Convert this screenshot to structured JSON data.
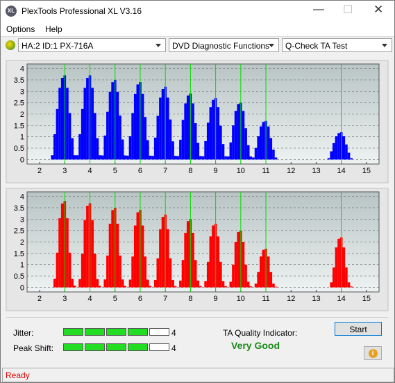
{
  "window_title": "PlexTools Professional XL V3.16",
  "menu": [
    "Options",
    "Help"
  ],
  "dropdowns": [
    "HA:2 ID:1  PX-716A",
    "DVD Diagnostic Functions",
    "Q-Check TA Test"
  ],
  "chart_data": [
    {
      "type": "bar",
      "color": "#0000ff",
      "marker_color": "#00dd00",
      "markers": [
        3,
        4,
        5,
        6,
        7,
        8,
        9,
        10,
        11,
        14
      ],
      "grid": true,
      "xlim": [
        1.5,
        15.5
      ],
      "xticks": [
        2,
        3,
        4,
        5,
        6,
        7,
        8,
        9,
        10,
        11,
        12,
        13,
        14,
        15
      ],
      "ylim": [
        -0.2,
        4.2
      ],
      "yticks": [
        0,
        0.5,
        1,
        1.5,
        2,
        2.5,
        3,
        3.5,
        4
      ],
      "x": [
        2.5,
        2.6,
        2.7,
        2.8,
        2.9,
        3,
        3.1,
        3.2,
        3.3,
        3.4,
        3.5,
        3.6,
        3.7,
        3.8,
        3.9,
        4,
        4.1,
        4.2,
        4.3,
        4.4,
        4.5,
        4.6,
        4.7,
        4.8,
        4.9,
        5,
        5.1,
        5.2,
        5.3,
        5.4,
        5.5,
        5.6,
        5.7,
        5.8,
        5.9,
        6,
        6.1,
        6.2,
        6.3,
        6.4,
        6.5,
        6.6,
        6.7,
        6.8,
        6.9,
        7,
        7.1,
        7.2,
        7.3,
        7.4,
        7.5,
        7.6,
        7.7,
        7.8,
        7.9,
        8,
        8.1,
        8.2,
        8.3,
        8.4,
        8.5,
        8.6,
        8.7,
        8.8,
        8.9,
        9,
        9.1,
        9.2,
        9.3,
        9.4,
        9.5,
        9.6,
        9.7,
        9.8,
        9.9,
        10,
        10.1,
        10.2,
        10.3,
        10.4,
        10.5,
        10.6,
        10.7,
        10.8,
        10.9,
        11,
        11.1,
        11.2,
        11.3,
        11.4,
        13.5,
        13.6,
        13.7,
        13.8,
        13.9,
        14,
        14.1,
        14.2,
        14.3,
        14.4
      ],
      "values": [
        0.19,
        1.11,
        2.22,
        3.15,
        3.59,
        3.7,
        3.15,
        2.04,
        0.93,
        0.19,
        0.19,
        1.11,
        2.22,
        3.15,
        3.59,
        3.7,
        3.15,
        2.04,
        0.93,
        0.19,
        0.18,
        1.05,
        2.1,
        2.98,
        3.4,
        3.5,
        2.98,
        1.93,
        0.88,
        0.18,
        0.17,
        1.02,
        2.04,
        2.89,
        3.3,
        3.4,
        2.89,
        1.87,
        0.85,
        0.17,
        0.16,
        0.96,
        1.92,
        2.72,
        3.1,
        3.2,
        2.72,
        1.76,
        0.8,
        0.16,
        0.15,
        0.87,
        1.74,
        2.47,
        2.81,
        2.9,
        2.47,
        1.6,
        0.73,
        0.15,
        0.14,
        0.81,
        1.62,
        2.3,
        2.62,
        2.7,
        2.3,
        1.49,
        0.68,
        0.14,
        0.13,
        0.75,
        1.5,
        2.13,
        2.43,
        2.5,
        2.13,
        1.38,
        0.63,
        0.13,
        0.09,
        0.51,
        1.02,
        1.45,
        1.65,
        1.7,
        1.45,
        0.94,
        0.43,
        0.09,
        0.06,
        0.36,
        0.72,
        1.02,
        1.16,
        1.2,
        1.02,
        0.66,
        0.3,
        0.06
      ]
    },
    {
      "type": "bar",
      "color": "#ff0000",
      "marker_color": "#00dd00",
      "markers": [
        3,
        4,
        5,
        6,
        7,
        8,
        9,
        10,
        11,
        14
      ],
      "grid": true,
      "xlim": [
        1.5,
        15.5
      ],
      "xticks": [
        2,
        3,
        4,
        5,
        6,
        7,
        8,
        9,
        10,
        11,
        12,
        13,
        14,
        15
      ],
      "ylim": [
        -0.2,
        4.2
      ],
      "yticks": [
        0,
        0.5,
        1,
        1.5,
        2,
        2.5,
        3,
        3.5,
        4
      ],
      "x": [
        2.5,
        2.6,
        2.7,
        2.8,
        2.9,
        3,
        3.1,
        3.2,
        3.3,
        3.4,
        3.5,
        3.6,
        3.7,
        3.8,
        3.9,
        4,
        4.1,
        4.2,
        4.3,
        4.4,
        4.5,
        4.6,
        4.7,
        4.8,
        4.9,
        5,
        5.1,
        5.2,
        5.3,
        5.4,
        5.5,
        5.6,
        5.7,
        5.8,
        5.9,
        6,
        6.1,
        6.2,
        6.3,
        6.4,
        6.5,
        6.6,
        6.7,
        6.8,
        6.9,
        7,
        7.1,
        7.2,
        7.3,
        7.4,
        7.5,
        7.6,
        7.7,
        7.8,
        7.9,
        8,
        8.1,
        8.2,
        8.3,
        8.4,
        8.5,
        8.6,
        8.7,
        8.8,
        8.9,
        9,
        9.1,
        9.2,
        9.3,
        9.4,
        9.5,
        9.6,
        9.7,
        9.8,
        9.9,
        10,
        10.1,
        10.2,
        10.3,
        10.4,
        10.5,
        10.6,
        10.7,
        10.8,
        10.9,
        11,
        11.1,
        11.2,
        11.3,
        11.4,
        13.5,
        13.6,
        13.7,
        13.8,
        13.9,
        14,
        14.1,
        14.2,
        14.3,
        14.4
      ],
      "values": [
        0,
        0.38,
        1.52,
        3.04,
        3.69,
        3.8,
        3.04,
        1.52,
        0.38,
        0.08,
        0,
        0.37,
        1.48,
        2.96,
        3.59,
        3.7,
        2.96,
        1.48,
        0.37,
        0.07,
        0,
        0.35,
        1.4,
        2.8,
        3.4,
        3.5,
        2.8,
        1.4,
        0.35,
        0.07,
        0,
        0.34,
        1.36,
        2.72,
        3.3,
        3.4,
        2.72,
        1.36,
        0.34,
        0.07,
        0,
        0.32,
        1.28,
        2.56,
        3.1,
        3.2,
        2.56,
        1.28,
        0.32,
        0.06,
        0,
        0.3,
        1.2,
        2.4,
        2.91,
        3,
        2.4,
        1.2,
        0.3,
        0.06,
        0,
        0.28,
        1.12,
        2.24,
        2.72,
        2.8,
        2.24,
        1.12,
        0.28,
        0.06,
        0,
        0.25,
        1,
        2,
        2.43,
        2.5,
        2,
        1,
        0.25,
        0.05,
        0,
        0.17,
        0.68,
        1.36,
        1.65,
        1.7,
        1.36,
        0.68,
        0.17,
        0.03,
        0,
        0.22,
        0.88,
        1.76,
        2.13,
        2.2,
        1.76,
        0.88,
        0.22,
        0.04
      ]
    }
  ],
  "jitter": {
    "label": "Jitter:",
    "value": 4
  },
  "peak_shift": {
    "label": "Peak Shift:",
    "value": 4
  },
  "ta_quality": {
    "label": "TA Quality Indicator:",
    "result": "Very Good"
  },
  "start_button": "Start",
  "status": "Ready"
}
